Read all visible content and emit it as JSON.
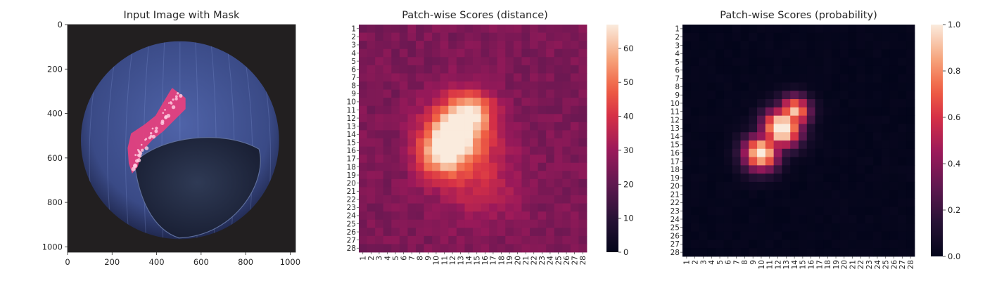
{
  "figure": {
    "panels": [
      {
        "title": "Input Image with Mask"
      },
      {
        "title": "Patch-wise Scores (distance)"
      },
      {
        "title": "Patch-wise Scores (probability)"
      }
    ]
  },
  "chart_data": [
    {
      "type": "image",
      "title": "Input Image with Mask",
      "xlim": [
        0,
        1024
      ],
      "ylim": [
        1024,
        0
      ],
      "xticks": [
        0,
        200,
        400,
        600,
        800,
        1000
      ],
      "yticks": [
        0,
        200,
        400,
        600,
        800,
        1000
      ],
      "content": "dark blue hazelnut on black background with a pink anomaly mask overlaid on a diagonal crack region",
      "nut": {
        "cx": 505,
        "cy": 520,
        "r": 445
      },
      "mask_polygon": [
        [
          470,
          285
        ],
        [
          530,
          330
        ],
        [
          530,
          380
        ],
        [
          480,
          430
        ],
        [
          430,
          480
        ],
        [
          380,
          520
        ],
        [
          335,
          570
        ],
        [
          315,
          640
        ],
        [
          290,
          670
        ],
        [
          275,
          625
        ],
        [
          270,
          555
        ],
        [
          285,
          490
        ],
        [
          345,
          450
        ],
        [
          395,
          410
        ],
        [
          430,
          350
        ],
        [
          460,
          300
        ]
      ]
    },
    {
      "type": "heatmap",
      "title": "Patch-wise Scores (distance)",
      "grid_size": 28,
      "row_labels": [
        "1",
        "2",
        "3",
        "4",
        "5",
        "6",
        "7",
        "8",
        "9",
        "10",
        "11",
        "12",
        "13",
        "14",
        "15",
        "16",
        "17",
        "18",
        "19",
        "20",
        "21",
        "22",
        "23",
        "24",
        "25",
        "26",
        "27",
        "28"
      ],
      "col_labels": [
        "1",
        "2",
        "3",
        "4",
        "5",
        "6",
        "7",
        "8",
        "9",
        "10",
        "11",
        "12",
        "13",
        "14",
        "15",
        "16",
        "17",
        "18",
        "19",
        "20",
        "21",
        "22",
        "23",
        "24",
        "25",
        "26",
        "27",
        "28"
      ],
      "colorbar": {
        "min": 0,
        "max": 67,
        "ticks": [
          0,
          10,
          20,
          30,
          40,
          50,
          60
        ],
        "colormap": "rocket"
      },
      "background_value": 25,
      "hotspots": [
        {
          "row": 12.5,
          "col": 11.5,
          "peak": 40,
          "spread": 2.6
        },
        {
          "row": 15.5,
          "col": 9.5,
          "peak": 28,
          "spread": 2.0
        },
        {
          "row": 10.0,
          "col": 13.5,
          "peak": 24,
          "spread": 1.8
        },
        {
          "row": 18.5,
          "col": 14.0,
          "peak": 13,
          "spread": 3.5
        }
      ]
    },
    {
      "type": "heatmap",
      "title": "Patch-wise Scores (probability)",
      "grid_size": 28,
      "row_labels": [
        "1",
        "2",
        "3",
        "4",
        "5",
        "6",
        "7",
        "8",
        "9",
        "10",
        "11",
        "12",
        "13",
        "14",
        "15",
        "16",
        "17",
        "18",
        "19",
        "20",
        "21",
        "22",
        "23",
        "24",
        "25",
        "26",
        "27",
        "28"
      ],
      "col_labels": [
        "1",
        "2",
        "3",
        "4",
        "5",
        "6",
        "7",
        "8",
        "9",
        "10",
        "11",
        "12",
        "13",
        "14",
        "15",
        "16",
        "17",
        "18",
        "19",
        "20",
        "21",
        "22",
        "23",
        "24",
        "25",
        "26",
        "27",
        "28"
      ],
      "colorbar": {
        "min": 0.0,
        "max": 1.0,
        "ticks": [
          "0.0",
          "0.2",
          "0.4",
          "0.6",
          "0.8",
          "1.0"
        ],
        "colormap": "rocket"
      },
      "background_value": 0.02,
      "hotspots": [
        {
          "row": 12.0,
          "col": 11.5,
          "peak": 1.0,
          "spread": 1.6
        },
        {
          "row": 15.0,
          "col": 9.0,
          "peak": 0.9,
          "spread": 1.5
        },
        {
          "row": 10.0,
          "col": 13.0,
          "peak": 0.8,
          "spread": 1.3
        }
      ]
    }
  ]
}
